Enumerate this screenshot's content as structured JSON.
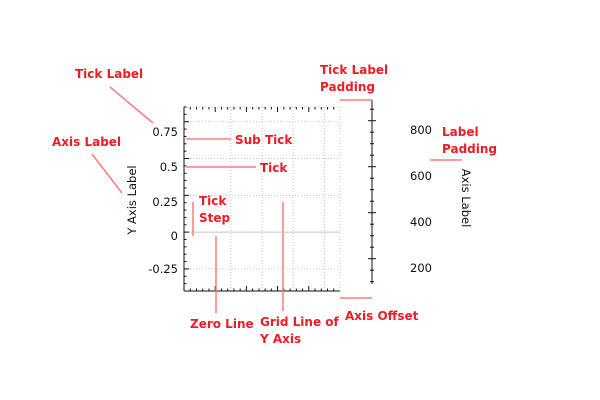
{
  "colors": {
    "annotation": "#ee1c24",
    "leader_line": "#ff7b7b",
    "axis": "#111111",
    "grid": "#c8c8c8",
    "zero_line": "#c8c8c8",
    "background": "#ffffff"
  },
  "chart_data": {
    "type": "line",
    "left_axis": {
      "title": "Y Axis Label",
      "range": [
        -0.4,
        0.85
      ],
      "tick_step": 0.25,
      "tick_values": [
        -0.25,
        0,
        0.25,
        0.5,
        0.75
      ],
      "tick_labels": [
        "-0.25",
        "0",
        "0.25",
        "0.5",
        "0.75"
      ],
      "sub_ticks_per_step": 5,
      "zero_line": true,
      "grid": true
    },
    "right_axis": {
      "title": "Axis Label",
      "range": [
        90,
        890
      ],
      "tick_step": 200,
      "tick_values": [
        200,
        400,
        600,
        800
      ],
      "tick_labels": [
        "200",
        "400",
        "600",
        "800"
      ],
      "sub_ticks_per_step": 4
    },
    "x_axis": {
      "range": [
        0,
        5
      ],
      "grid_values": [
        1.5,
        2.5,
        3.5,
        4.5
      ],
      "sub_ticks_per_unit": 5
    },
    "series": []
  },
  "annotations": {
    "tick_label": [
      "Tick Label"
    ],
    "axis_label": [
      "Axis Label"
    ],
    "sub_tick": [
      "Sub Tick"
    ],
    "tick": [
      "Tick"
    ],
    "tick_step": [
      "Tick",
      "Step"
    ],
    "zero_line": [
      "Zero Line"
    ],
    "grid_line_y": [
      "Grid Line of",
      "Y Axis"
    ],
    "axis_offset": [
      "Axis Offset"
    ],
    "tick_label_padding": [
      "Tick Label",
      "Padding"
    ],
    "label_padding": [
      "Label",
      "Padding"
    ]
  }
}
